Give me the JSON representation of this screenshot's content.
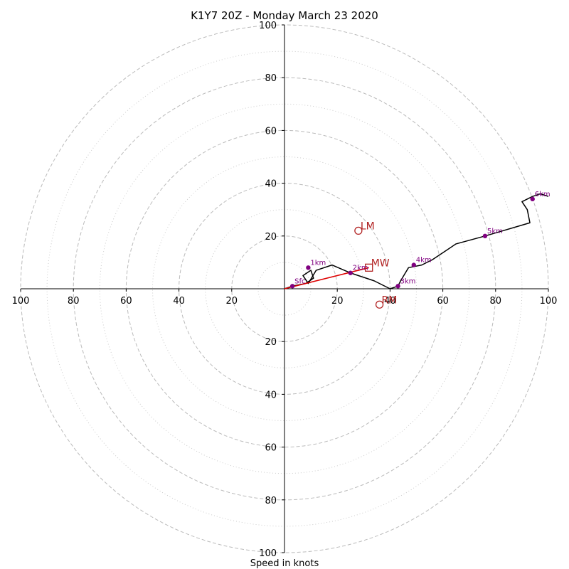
{
  "chart_data": {
    "type": "hodograph",
    "title": "K1Y7 20Z - Monday March 23 2020",
    "xlabel": "Speed in knots",
    "ylabel": "",
    "xlim": [
      -100,
      100
    ],
    "ylim": [
      -100,
      100
    ],
    "rings_major": [
      20,
      40,
      60,
      80,
      100
    ],
    "rings_minor": [
      10,
      30,
      50,
      70,
      90
    ],
    "x_tick_labels": [
      "100",
      "80",
      "60",
      "40",
      "20",
      "20",
      "40",
      "60",
      "80",
      "100"
    ],
    "x_tick_values": [
      -100,
      -80,
      -60,
      -40,
      -20,
      20,
      40,
      60,
      80,
      100
    ],
    "y_tick_labels": [
      "100",
      "80",
      "60",
      "40",
      "20",
      "20",
      "40",
      "60",
      "80",
      "100"
    ],
    "y_tick_values": [
      100,
      80,
      60,
      40,
      20,
      -20,
      -40,
      -60,
      -80,
      -100
    ],
    "grid": true,
    "colors": {
      "trace": "#000000",
      "height_points": "#800080",
      "mean_wind_vector": "#dd0000",
      "markers": "#b22222",
      "ring_grid": "#bbbbbb"
    },
    "hodograph_trace": {
      "u": [
        0,
        3,
        8,
        11,
        10,
        7,
        9,
        12,
        18,
        25,
        34,
        40,
        43,
        44,
        47,
        52,
        56,
        65,
        76,
        93,
        92,
        90,
        94,
        97,
        100
      ],
      "v": [
        0,
        1,
        2,
        4,
        7,
        5,
        2,
        7,
        9,
        6,
        3,
        0,
        1,
        3,
        8,
        9,
        11,
        17,
        20,
        25,
        30,
        33,
        35,
        36,
        35
      ]
    },
    "height_points": [
      {
        "label": "Sfc",
        "u": 3,
        "v": 1
      },
      {
        "label": "1km",
        "u": 9,
        "v": 8
      },
      {
        "label": "2km",
        "u": 25,
        "v": 6
      },
      {
        "label": "3km",
        "u": 43,
        "v": 1
      },
      {
        "label": "4km",
        "u": 49,
        "v": 9
      },
      {
        "label": "5km",
        "u": 76,
        "v": 20
      },
      {
        "label": "6km",
        "u": 94,
        "v": 34
      }
    ],
    "mean_wind_vector": {
      "from": [
        0,
        0
      ],
      "to": [
        32,
        8
      ]
    },
    "markers": [
      {
        "label": "LM",
        "u": 28,
        "v": 22,
        "shape": "circle"
      },
      {
        "label": "MW",
        "u": 32,
        "v": 8,
        "shape": "square"
      },
      {
        "label": "RM",
        "u": 36,
        "v": -6,
        "shape": "circle"
      }
    ]
  }
}
